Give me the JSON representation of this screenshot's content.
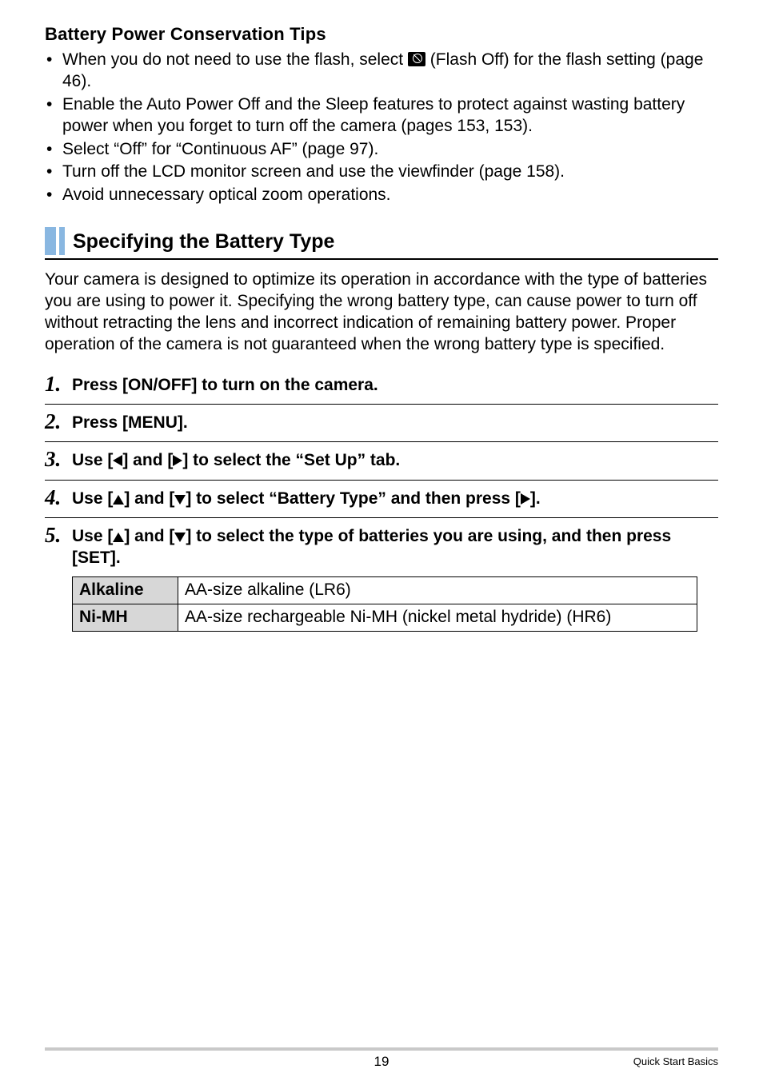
{
  "tips": {
    "heading": "Battery Power Conservation Tips",
    "b1a": "When you do not need to use the flash, select ",
    "b1b": " (Flash Off) for the flash setting (page 46).",
    "b2": "Enable the Auto Power Off and the Sleep features to protect against wasting battery power when you forget to turn off the camera (pages 153, 153).",
    "b3": "Select “Off” for “Continuous AF” (page 97).",
    "b4": "Turn off the LCD monitor screen and use the viewfinder (page 158).",
    "b5": "Avoid unnecessary optical zoom operations."
  },
  "section": {
    "title": "Specifying the Battery Type",
    "intro": "Your camera is designed to optimize its operation in accordance with the type of batteries you are using to power it. Specifying the wrong battery type, can cause power to turn off without retracting the lens and incorrect indication of remaining battery power. Proper operation of the camera is not guaranteed when the wrong battery type is specified."
  },
  "steps": {
    "s1": "Press [ON/OFF] to turn on the camera.",
    "s2": "Press [MENU].",
    "s3a": "Use [",
    "s3b": "] and [",
    "s3c": "] to select the “Set Up” tab.",
    "s4a": "Use [",
    "s4b": "] and [",
    "s4c": "] to select “Battery Type” and then press [",
    "s4d": "].",
    "s5a": "Use [",
    "s5b": "] and [",
    "s5c": "] to select the type of batteries you are using, and then press [SET]."
  },
  "table": {
    "r1h": "Alkaline",
    "r1v": "AA-size alkaline (LR6)",
    "r2h": "Ni-MH",
    "r2v": "AA-size rechargeable Ni-MH (nickel metal hydride) (HR6)"
  },
  "footer": {
    "page": "19",
    "section": "Quick Start Basics"
  },
  "step_numbers": {
    "n1": "1",
    "n2": "2",
    "n3": "3",
    "n4": "4",
    "n5": "5"
  }
}
